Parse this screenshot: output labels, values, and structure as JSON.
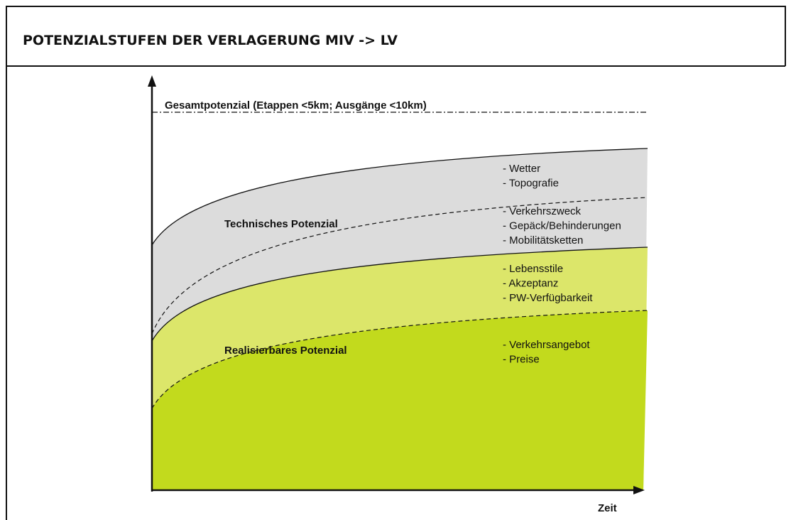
{
  "header": {
    "title": "POTENZIALSTUFEN DER VERLAGERUNG MIV -> LV"
  },
  "diagram": {
    "total_label": "Gesamtpotenzial (Etappen <5km; Ausgänge <10km)",
    "technical_label": "Technisches Potenzial",
    "realizable_label": "Realisierbares Potenzial",
    "x_axis_label": "Zeit",
    "factors": [
      [
        "- Wetter",
        "- Topografie"
      ],
      [
        "- Verkehrszweck",
        "- Gepäck/Behinderungen",
        "- Mobilitätsketten"
      ],
      [
        "- Lebensstile",
        "- Akzeptanz",
        "- PW-Verfügbarkeit"
      ],
      [
        "- Verkehrsangebot",
        "- Preise"
      ]
    ]
  }
}
